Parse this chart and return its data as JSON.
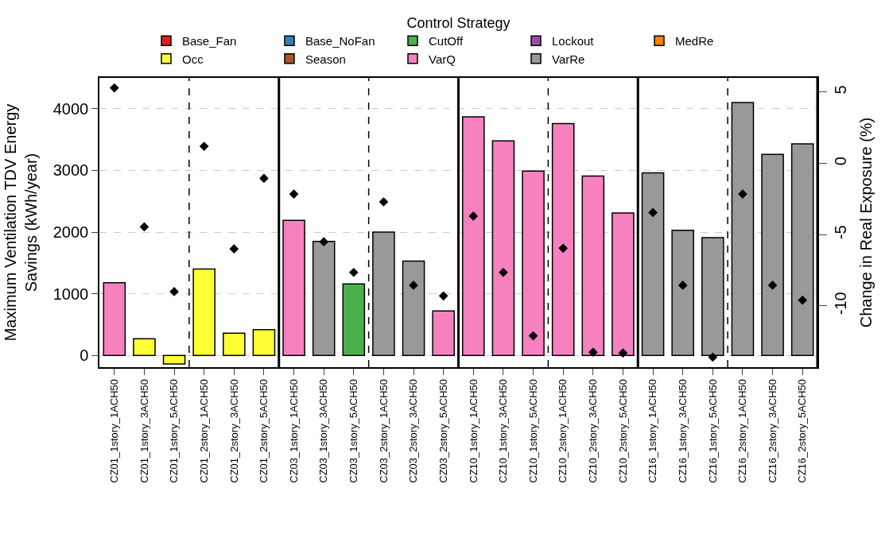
{
  "chart_data": {
    "type": "bar",
    "ylabel": "Maximum Ventilation TDV Energy\nSavings (kWh/year)",
    "y2label": "Change in Real Exposure (%)",
    "legend_title": "Control Strategy",
    "categories": [
      "CZ01_1story_1ACH50",
      "CZ01_1story_3ACH50",
      "CZ01_1story_5ACH50",
      "CZ01_2story_1ACH50",
      "CZ01_2story_3ACH50",
      "CZ01_2story_5ACH50",
      "CZ03_1story_1ACH50",
      "CZ03_1story_3ACH50",
      "CZ03_1story_5ACH50",
      "CZ03_2story_1ACH50",
      "CZ03_2story_3ACH50",
      "CZ03_2story_5ACH50",
      "CZ10_1story_1ACH50",
      "CZ10_1story_3ACH50",
      "CZ10_1story_5ACH50",
      "CZ10_2story_1ACH50",
      "CZ10_2story_3ACH50",
      "CZ10_2story_5ACH50",
      "CZ16_1story_1ACH50",
      "CZ16_1story_3ACH50",
      "CZ16_1story_5ACH50",
      "CZ16_2story_1ACH50",
      "CZ16_2story_3ACH50",
      "CZ16_2story_5ACH50"
    ],
    "series": [
      {
        "name": "Base_Fan",
        "color": "#e41a1c",
        "values": [
          null,
          null,
          null,
          null,
          null,
          null,
          null,
          null,
          null,
          null,
          null,
          null,
          null,
          null,
          null,
          null,
          null,
          null,
          null,
          null,
          null,
          null,
          null,
          null
        ]
      },
      {
        "name": "Base_NoFan",
        "color": "#377eb8",
        "values": [
          null,
          null,
          null,
          null,
          null,
          null,
          null,
          null,
          null,
          null,
          null,
          null,
          null,
          null,
          null,
          null,
          null,
          null,
          null,
          null,
          null,
          null,
          null,
          null
        ]
      },
      {
        "name": "CutOff",
        "color": "#4daf4a",
        "values": [
          null,
          null,
          null,
          null,
          null,
          null,
          null,
          null,
          1160,
          null,
          null,
          null,
          null,
          null,
          null,
          null,
          null,
          null,
          null,
          null,
          null,
          null,
          null,
          null
        ]
      },
      {
        "name": "Lockout",
        "color": "#984ea3",
        "values": [
          null,
          null,
          null,
          null,
          null,
          null,
          null,
          null,
          null,
          null,
          null,
          null,
          null,
          null,
          null,
          null,
          null,
          null,
          null,
          null,
          null,
          null,
          null,
          null
        ]
      },
      {
        "name": "MedRe",
        "color": "#ff7f00",
        "values": [
          null,
          null,
          null,
          null,
          null,
          null,
          null,
          null,
          null,
          null,
          null,
          null,
          null,
          null,
          null,
          null,
          null,
          null,
          null,
          null,
          null,
          null,
          null,
          null
        ]
      },
      {
        "name": "Occ",
        "color": "#ffff33",
        "values": [
          null,
          270,
          -140,
          1400,
          360,
          420,
          null,
          null,
          null,
          null,
          null,
          null,
          null,
          null,
          null,
          null,
          null,
          null,
          null,
          null,
          null,
          null,
          null,
          null
        ]
      },
      {
        "name": "Season",
        "color": "#a65628",
        "values": [
          null,
          null,
          null,
          null,
          null,
          null,
          null,
          null,
          null,
          null,
          null,
          null,
          null,
          null,
          null,
          null,
          null,
          null,
          null,
          null,
          null,
          null,
          null,
          null
        ]
      },
      {
        "name": "VarQ",
        "color": "#f781bf",
        "values": [
          1180,
          null,
          null,
          null,
          null,
          null,
          2190,
          null,
          null,
          null,
          null,
          720,
          3870,
          3480,
          2990,
          3760,
          2910,
          2310,
          null,
          null,
          null,
          null,
          null,
          null
        ]
      },
      {
        "name": "VarRe",
        "color": "#999999",
        "values": [
          null,
          null,
          null,
          null,
          null,
          null,
          null,
          1850,
          null,
          2000,
          1530,
          null,
          null,
          null,
          null,
          null,
          null,
          null,
          2960,
          2030,
          1910,
          4100,
          3260,
          3430
        ]
      },
      {
        "type": "scatter",
        "axis": "y2",
        "marker": "diamond",
        "color": "#000000",
        "values": [
          5.3,
          -4.45,
          -9.0,
          1.2,
          -6.0,
          -1.05,
          -2.15,
          -5.5,
          -7.65,
          -2.7,
          -8.55,
          -9.3,
          -3.7,
          -7.65,
          -12.1,
          -5.95,
          -13.25,
          -13.3,
          -3.45,
          -8.55,
          -13.6,
          -2.15,
          -8.55,
          -9.6
        ]
      }
    ],
    "ylim": [
      -190,
      4500
    ],
    "yticks": [
      0,
      1000,
      2000,
      3000,
      4000
    ],
    "y2lim": [
      -14.3,
      6.0
    ],
    "y2ticks": [
      -10,
      -5,
      0,
      5
    ],
    "grid": "y",
    "legend": "top"
  }
}
